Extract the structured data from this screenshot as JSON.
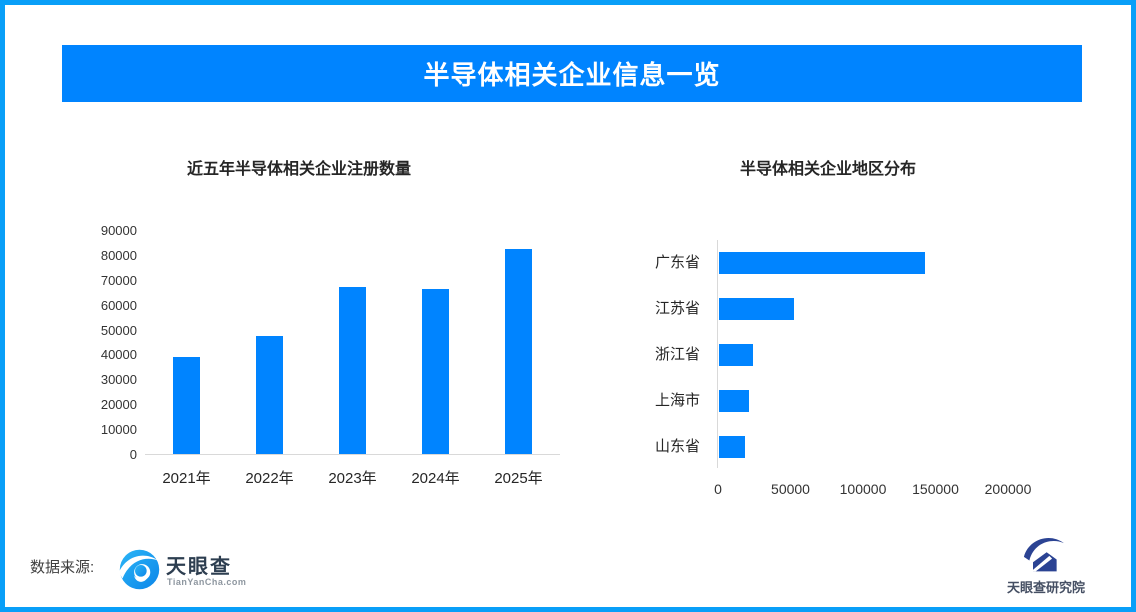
{
  "colors": {
    "accent_blue": "#0084FF",
    "border_blue": "#099FF8",
    "axis_gray": "#D9D9D9"
  },
  "banner": {
    "title": "半导体相关企业信息一览",
    "bg_color": "#0084FF",
    "text_color": "#FFFFFF"
  },
  "chart_data": [
    {
      "type": "bar",
      "orientation": "vertical",
      "title": "近五年半导体相关企业注册数量",
      "categories": [
        "2021年",
        "2022年",
        "2023年",
        "2024年",
        "2025年"
      ],
      "values": [
        39000,
        47500,
        67000,
        66500,
        82500
      ],
      "xlabel": "",
      "ylabel": "",
      "ylim": [
        0,
        90000
      ],
      "ytick_interval": 10000,
      "bar_color": "#0084FF",
      "grid": false,
      "legend": "none"
    },
    {
      "type": "bar",
      "orientation": "horizontal",
      "title": "半导体相关企业地区分布",
      "categories": [
        "广东省",
        "江苏省",
        "浙江省",
        "上海市",
        "山东省"
      ],
      "values": [
        142000,
        52000,
        23500,
        21000,
        18000
      ],
      "xlabel": "",
      "ylabel": "",
      "xlim": [
        0,
        240000
      ],
      "xticks": [
        0,
        50000,
        100000,
        150000,
        200000
      ],
      "bar_color": "#0084FF",
      "grid": false,
      "legend": "none"
    }
  ],
  "footer": {
    "source_label": "数据来源:",
    "tianyancha_name": "天眼查",
    "tianyancha_domain": "TianYanCha.com",
    "research_institute": "天眼查研究院"
  }
}
